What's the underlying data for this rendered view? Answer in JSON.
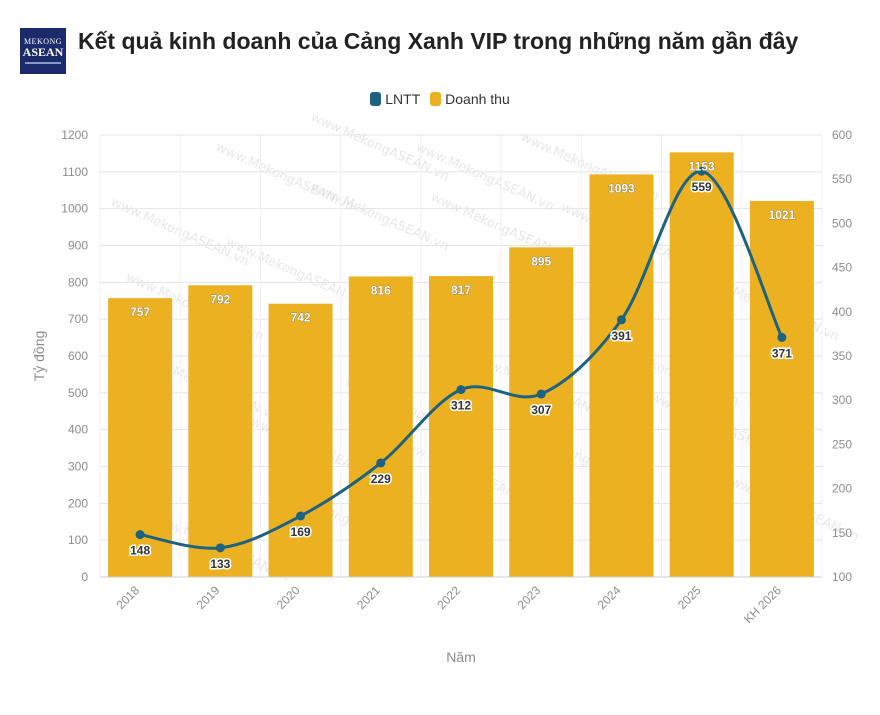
{
  "header": {
    "logo_line1": "MEKONG",
    "logo_line2": "ASEAN",
    "title": "Kết quả kinh doanh của Cảng Xanh VIP trong những năm gần đây"
  },
  "watermark": "www.MekongASEAN.vn",
  "colors": {
    "line": "#1e6282",
    "bar": "#ebb121",
    "grid": "#e5e5e5",
    "axis_text": "#8c8c8c"
  },
  "chart_data": {
    "type": "bar",
    "categories": [
      "2018",
      "2019",
      "2020",
      "2021",
      "2022",
      "2023",
      "2024",
      "2025",
      "KH 2026"
    ],
    "series": [
      {
        "name": "LNTT",
        "type": "line",
        "axis": "right",
        "values": [
          148,
          133,
          169,
          229,
          312,
          307,
          391,
          559,
          371
        ]
      },
      {
        "name": "Doanh thu",
        "type": "bar",
        "axis": "left",
        "values": [
          757,
          792,
          742,
          816,
          817,
          895,
          1093,
          1153,
          1021
        ]
      }
    ],
    "xlabel": "Năm",
    "ylabel": "Tỷ đồng",
    "ylim": [
      0,
      1200
    ],
    "y2lim": [
      100,
      600
    ],
    "yticks": [
      "0",
      "100",
      "200",
      "300",
      "400",
      "500",
      "600",
      "700",
      "800",
      "900",
      "1000",
      "1100",
      "1200"
    ],
    "y2ticks": [
      "100",
      "150",
      "200",
      "250",
      "300",
      "350",
      "400",
      "450",
      "500",
      "550",
      "600"
    ],
    "grid": true,
    "legend_position": "top-center"
  }
}
